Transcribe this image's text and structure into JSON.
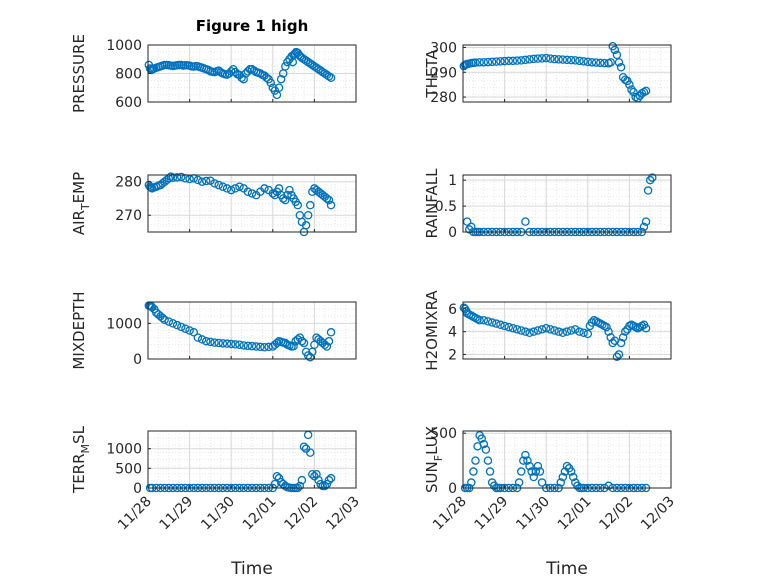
{
  "figure": {
    "title": "Figure 1 high",
    "background": "#ffffff",
    "marker_color": "#0072BD",
    "grid_color": "#d9d9d9",
    "axis_color": "#262626"
  },
  "chart_data": [
    {
      "type": "scatter",
      "panel": "top-left",
      "title": "Figure 1 high",
      "xlabel": "",
      "ylabel": "PRESSURE",
      "ylim": [
        600,
        1000
      ],
      "yticks": [
        600,
        800,
        1000
      ],
      "ytick_labels": [
        "600",
        "800",
        "1000"
      ],
      "xlim": [
        0,
        5
      ],
      "xtick_labels": [
        "11/28",
        "11/29",
        "11/30",
        "12/01",
        "12/02",
        "12/03"
      ],
      "grid": true,
      "minor_grid": true,
      "x": [
        0.02,
        0.05,
        0.08,
        0.1,
        0.12,
        0.15,
        0.2,
        0.25,
        0.3,
        0.35,
        0.4,
        0.45,
        0.5,
        0.55,
        0.6,
        0.65,
        0.7,
        0.75,
        0.8,
        0.85,
        0.9,
        0.95,
        1.0,
        1.05,
        1.1,
        1.15,
        1.2,
        1.25,
        1.3,
        1.35,
        1.4,
        1.45,
        1.5,
        1.55,
        1.6,
        1.65,
        1.7,
        1.75,
        1.8,
        1.85,
        1.9,
        1.95,
        2.0,
        2.05,
        2.1,
        2.15,
        2.2,
        2.25,
        2.3,
        2.35,
        2.4,
        2.45,
        2.5,
        2.55,
        2.6,
        2.65,
        2.7,
        2.75,
        2.8,
        2.85,
        2.9,
        2.95,
        3.0,
        3.05,
        3.1,
        3.15,
        3.2,
        3.25,
        3.3,
        3.35,
        3.4,
        3.45,
        3.48,
        3.5,
        3.53,
        3.56,
        3.6,
        3.63,
        3.66,
        3.7,
        3.75,
        3.8,
        3.85,
        3.9,
        3.95,
        4.0,
        4.05,
        4.1,
        4.15,
        4.2,
        4.25,
        4.3,
        4.35,
        4.4
      ],
      "y": [
        860,
        835,
        825,
        830,
        830,
        835,
        840,
        845,
        850,
        855,
        860,
        860,
        858,
        855,
        853,
        855,
        858,
        860,
        860,
        855,
        858,
        857,
        855,
        850,
        848,
        852,
        850,
        845,
        840,
        835,
        830,
        825,
        815,
        812,
        810,
        815,
        820,
        808,
        800,
        795,
        792,
        800,
        815,
        830,
        810,
        795,
        790,
        770,
        760,
        800,
        815,
        830,
        830,
        820,
        810,
        805,
        800,
        790,
        785,
        770,
        760,
        735,
        700,
        680,
        650,
        700,
        760,
        800,
        850,
        880,
        900,
        920,
        880,
        930,
        940,
        950,
        945,
        930,
        920,
        910,
        900,
        890,
        880,
        870,
        860,
        850,
        840,
        830,
        820,
        810,
        800,
        790,
        780,
        770
      ],
      "points_note": "x in days after 11/28"
    },
    {
      "type": "scatter",
      "panel": "top-right",
      "xlabel": "",
      "ylabel": "THETA",
      "ylim": [
        278,
        301
      ],
      "yticks": [
        280,
        290,
        300
      ],
      "ytick_labels": [
        "280",
        "290",
        "300"
      ],
      "xlim": [
        0,
        5
      ],
      "grid": true,
      "minor_grid": true,
      "x": [
        0.02,
        0.05,
        0.08,
        0.1,
        0.15,
        0.2,
        0.25,
        0.3,
        0.4,
        0.5,
        0.6,
        0.7,
        0.8,
        0.9,
        1.0,
        1.1,
        1.2,
        1.3,
        1.4,
        1.5,
        1.6,
        1.7,
        1.8,
        1.9,
        2.0,
        2.1,
        2.2,
        2.3,
        2.4,
        2.5,
        2.6,
        2.7,
        2.8,
        2.9,
        3.0,
        3.1,
        3.2,
        3.3,
        3.4,
        3.5,
        3.55,
        3.6,
        3.65,
        3.7,
        3.75,
        3.8,
        3.85,
        3.9,
        3.95,
        4.0,
        4.05,
        4.1,
        4.15,
        4.2,
        4.25,
        4.3,
        4.35,
        4.4
      ],
      "y": [
        292.5,
        293.0,
        293.2,
        293.3,
        293.5,
        293.7,
        293.8,
        293.9,
        294.0,
        294.0,
        294.1,
        294.2,
        294.3,
        294.4,
        294.5,
        294.6,
        294.6,
        294.7,
        294.8,
        295.0,
        295.2,
        295.4,
        295.5,
        295.6,
        295.7,
        295.5,
        295.3,
        295.2,
        295.1,
        295.0,
        294.9,
        294.8,
        294.6,
        294.4,
        294.2,
        294.0,
        293.9,
        293.8,
        293.7,
        293.6,
        294.0,
        300.5,
        299.0,
        297.0,
        294.0,
        292.0,
        288.0,
        287.0,
        286.5,
        285.0,
        283.0,
        282.0,
        280.0,
        279.5,
        280.5,
        281.5,
        282.0,
        282.5
      ]
    },
    {
      "type": "scatter",
      "panel": "row2-left",
      "xlabel": "",
      "ylabel": "AIR_TEMP",
      "ylabel_display": {
        "main": "AIR",
        "sub": "T",
        "rest": "EMP"
      },
      "ylim": [
        265,
        282
      ],
      "yticks": [
        270,
        280
      ],
      "ytick_labels": [
        "270",
        "280"
      ],
      "xlim": [
        0,
        5
      ],
      "grid": true,
      "minor_grid": true,
      "x": [
        0.02,
        0.05,
        0.08,
        0.1,
        0.15,
        0.2,
        0.25,
        0.3,
        0.35,
        0.4,
        0.45,
        0.5,
        0.55,
        0.6,
        0.7,
        0.8,
        0.9,
        1.0,
        1.1,
        1.2,
        1.3,
        1.4,
        1.5,
        1.6,
        1.7,
        1.8,
        1.9,
        2.0,
        2.1,
        2.2,
        2.3,
        2.4,
        2.5,
        2.6,
        2.7,
        2.8,
        2.9,
        3.0,
        3.05,
        3.1,
        3.15,
        3.2,
        3.25,
        3.3,
        3.35,
        3.4,
        3.45,
        3.5,
        3.55,
        3.6,
        3.65,
        3.7,
        3.75,
        3.8,
        3.85,
        3.9,
        3.95,
        4.0,
        4.05,
        4.1,
        4.15,
        4.2,
        4.25,
        4.3,
        4.35,
        4.4
      ],
      "y": [
        279,
        278.5,
        278.2,
        278.0,
        278.3,
        278.5,
        278.8,
        279.0,
        279.5,
        280.0,
        280.5,
        281.0,
        281.5,
        281.2,
        281.3,
        281.4,
        281.0,
        280.8,
        281.0,
        280.5,
        280.0,
        280.2,
        280.3,
        279.5,
        279.0,
        278.5,
        278.0,
        277.5,
        278.0,
        278.5,
        278.0,
        277.0,
        276.5,
        276.0,
        277.0,
        278.0,
        277.5,
        276.5,
        276.0,
        277.0,
        278.0,
        276.0,
        275.0,
        274.5,
        276.0,
        277.5,
        276.0,
        275.0,
        274.0,
        273.0,
        270.0,
        268.0,
        265.0,
        267.0,
        270.0,
        273.0,
        277.0,
        278.0,
        277.5,
        277.0,
        276.5,
        276.0,
        275.5,
        275.0,
        274.5,
        273.0
      ]
    },
    {
      "type": "scatter",
      "panel": "row2-right",
      "xlabel": "",
      "ylabel": "RAINFALL",
      "ylim": [
        0,
        1.1
      ],
      "yticks": [
        0,
        0.5,
        1
      ],
      "ytick_labels": [
        "0",
        "0.5",
        "1"
      ],
      "xlim": [
        0,
        5
      ],
      "grid": true,
      "minor_grid": true,
      "x": [
        0.1,
        0.15,
        0.2,
        0.25,
        0.3,
        0.35,
        0.4,
        0.5,
        0.6,
        0.7,
        0.8,
        0.9,
        1.0,
        1.1,
        1.2,
        1.3,
        1.4,
        1.5,
        1.6,
        1.7,
        1.8,
        1.9,
        2.0,
        2.1,
        2.2,
        2.3,
        2.4,
        2.5,
        2.6,
        2.7,
        2.8,
        2.9,
        3.0,
        3.1,
        3.2,
        3.3,
        3.4,
        3.5,
        3.6,
        3.7,
        3.8,
        3.9,
        4.0,
        4.1,
        4.2,
        4.3,
        4.35,
        4.4,
        4.45,
        4.5,
        4.55
      ],
      "y": [
        0.2,
        0.05,
        0.1,
        0.0,
        0.0,
        0.0,
        0.0,
        0.0,
        0.0,
        0.0,
        0.0,
        0.0,
        0.0,
        0.0,
        0.0,
        0.0,
        0.0,
        0.2,
        0.0,
        0.0,
        0.0,
        0.0,
        0.0,
        0.0,
        0.0,
        0.0,
        0.0,
        0.0,
        0.0,
        0.0,
        0.0,
        0.0,
        0.0,
        0.0,
        0.0,
        0.0,
        0.0,
        0.0,
        0.0,
        0.0,
        0.0,
        0.0,
        0.0,
        0.0,
        0.0,
        0.0,
        0.1,
        0.2,
        0.8,
        1.0,
        1.05
      ]
    },
    {
      "type": "scatter",
      "panel": "row3-left",
      "xlabel": "",
      "ylabel": "MIXDEPTH",
      "ylim": [
        0,
        1600
      ],
      "yticks": [
        0,
        1000
      ],
      "ytick_labels": [
        "0",
        "1000"
      ],
      "xlim": [
        0,
        5
      ],
      "grid": true,
      "minor_grid": true,
      "x": [
        0.02,
        0.05,
        0.08,
        0.1,
        0.15,
        0.2,
        0.25,
        0.3,
        0.35,
        0.4,
        0.5,
        0.6,
        0.7,
        0.8,
        0.9,
        1.0,
        1.1,
        1.2,
        1.3,
        1.4,
        1.5,
        1.6,
        1.7,
        1.8,
        1.9,
        2.0,
        2.1,
        2.2,
        2.3,
        2.4,
        2.5,
        2.6,
        2.7,
        2.8,
        2.9,
        3.0,
        3.05,
        3.1,
        3.15,
        3.2,
        3.25,
        3.3,
        3.35,
        3.4,
        3.45,
        3.5,
        3.55,
        3.6,
        3.65,
        3.7,
        3.75,
        3.8,
        3.85,
        3.9,
        3.95,
        4.0,
        4.05,
        4.1,
        4.15,
        4.2,
        4.25,
        4.3,
        4.35,
        4.4
      ],
      "y": [
        1500,
        1500,
        1480,
        1450,
        1400,
        1300,
        1250,
        1200,
        1150,
        1100,
        1050,
        1000,
        950,
        900,
        850,
        800,
        750,
        600,
        550,
        500,
        480,
        460,
        450,
        440,
        430,
        420,
        410,
        400,
        380,
        370,
        360,
        350,
        340,
        330,
        340,
        350,
        400,
        450,
        500,
        480,
        460,
        450,
        400,
        380,
        350,
        360,
        500,
        550,
        600,
        500,
        450,
        200,
        100,
        50,
        200,
        400,
        600,
        550,
        500,
        450,
        400,
        350,
        500,
        750
      ]
    },
    {
      "type": "scatter",
      "panel": "row3-right",
      "xlabel": "",
      "ylabel": "H2OMIXRA",
      "ylim": [
        1.6,
        6.6
      ],
      "yticks": [
        2,
        4,
        6
      ],
      "ytick_labels": [
        "2",
        "4",
        "6"
      ],
      "xlim": [
        0,
        5
      ],
      "grid": true,
      "minor_grid": true,
      "x": [
        0.02,
        0.05,
        0.08,
        0.1,
        0.15,
        0.2,
        0.25,
        0.3,
        0.35,
        0.4,
        0.5,
        0.6,
        0.7,
        0.8,
        0.9,
        1.0,
        1.1,
        1.2,
        1.3,
        1.4,
        1.5,
        1.6,
        1.7,
        1.8,
        1.9,
        2.0,
        2.1,
        2.2,
        2.3,
        2.4,
        2.5,
        2.6,
        2.7,
        2.8,
        2.9,
        3.0,
        3.05,
        3.1,
        3.15,
        3.2,
        3.25,
        3.3,
        3.35,
        3.4,
        3.45,
        3.5,
        3.55,
        3.6,
        3.65,
        3.7,
        3.75,
        3.8,
        3.85,
        3.9,
        3.95,
        4.0,
        4.05,
        4.1,
        4.15,
        4.2,
        4.25,
        4.3,
        4.35,
        4.4
      ],
      "y": [
        6.1,
        6.0,
        5.8,
        5.6,
        5.5,
        5.4,
        5.3,
        5.2,
        5.1,
        5.0,
        5.0,
        4.9,
        4.8,
        4.7,
        4.6,
        4.5,
        4.4,
        4.3,
        4.2,
        4.1,
        4.0,
        3.9,
        4.0,
        4.1,
        4.2,
        4.3,
        4.2,
        4.1,
        4.0,
        3.9,
        4.0,
        4.1,
        4.2,
        4.0,
        3.9,
        3.8,
        4.5,
        4.8,
        5.0,
        4.9,
        4.8,
        4.7,
        4.6,
        4.5,
        4.4,
        4.0,
        3.5,
        3.0,
        3.2,
        1.8,
        2.0,
        3.0,
        3.5,
        4.0,
        4.2,
        4.5,
        4.6,
        4.5,
        4.4,
        4.3,
        4.4,
        4.5,
        4.6,
        4.3
      ]
    },
    {
      "type": "scatter",
      "panel": "bottom-left",
      "xlabel": "Time",
      "ylabel": "TERR_MSL",
      "ylabel_display": {
        "main": "TERR",
        "sub": "M",
        "rest": "SL"
      },
      "ylim": [
        0,
        1450
      ],
      "yticks": [
        0,
        500,
        1000
      ],
      "ytick_labels": [
        "0",
        "500",
        "1000"
      ],
      "xlim": [
        0,
        5
      ],
      "xticks": [
        0,
        1,
        2,
        3,
        4,
        5
      ],
      "xtick_labels": [
        "11/28",
        "11/29",
        "11/30",
        "12/01",
        "12/02",
        "12/03"
      ],
      "grid": true,
      "minor_grid": true,
      "x": [
        0.05,
        0.1,
        0.2,
        0.3,
        0.4,
        0.5,
        0.6,
        0.7,
        0.8,
        0.9,
        1.0,
        1.1,
        1.2,
        1.3,
        1.4,
        1.5,
        1.6,
        1.7,
        1.8,
        1.9,
        2.0,
        2.1,
        2.2,
        2.3,
        2.4,
        2.5,
        2.6,
        2.7,
        2.8,
        2.9,
        3.0,
        3.05,
        3.1,
        3.15,
        3.2,
        3.25,
        3.3,
        3.35,
        3.4,
        3.45,
        3.5,
        3.55,
        3.6,
        3.65,
        3.7,
        3.75,
        3.8,
        3.85,
        3.9,
        3.95,
        4.0,
        4.05,
        4.1,
        4.15,
        4.2,
        4.25,
        4.3,
        4.35,
        4.4
      ],
      "y": [
        0,
        0,
        0,
        0,
        0,
        0,
        0,
        0,
        0,
        0,
        0,
        0,
        0,
        0,
        0,
        0,
        0,
        0,
        0,
        0,
        0,
        0,
        0,
        0,
        0,
        0,
        0,
        0,
        0,
        0,
        0,
        100,
        300,
        250,
        150,
        100,
        50,
        20,
        10,
        0,
        0,
        0,
        0,
        50,
        200,
        1050,
        1000,
        1350,
        900,
        350,
        300,
        350,
        200,
        100,
        50,
        50,
        100,
        200,
        250
      ]
    },
    {
      "type": "scatter",
      "panel": "bottom-right",
      "xlabel": "Time",
      "ylabel": "SUN_FLUX",
      "ylabel_display": {
        "main": "SUN",
        "sub": "F",
        "rest": "LUX"
      },
      "ylim": [
        0,
        520
      ],
      "yticks": [
        0,
        500
      ],
      "ytick_labels": [
        "0",
        "500"
      ],
      "xlim": [
        0,
        5
      ],
      "xticks": [
        0,
        1,
        2,
        3,
        4,
        5
      ],
      "xtick_labels": [
        "11/28",
        "11/29",
        "11/30",
        "12/01",
        "12/02",
        "12/03"
      ],
      "grid": true,
      "minor_grid": true,
      "x": [
        0.05,
        0.1,
        0.15,
        0.2,
        0.25,
        0.3,
        0.35,
        0.4,
        0.45,
        0.5,
        0.55,
        0.6,
        0.65,
        0.7,
        0.75,
        0.8,
        0.85,
        0.9,
        1.0,
        1.1,
        1.2,
        1.3,
        1.35,
        1.4,
        1.45,
        1.5,
        1.55,
        1.6,
        1.65,
        1.7,
        1.75,
        1.8,
        1.85,
        1.9,
        2.0,
        2.1,
        2.2,
        2.3,
        2.35,
        2.4,
        2.45,
        2.5,
        2.55,
        2.6,
        2.65,
        2.7,
        2.75,
        2.8,
        2.85,
        2.9,
        3.0,
        3.1,
        3.2,
        3.3,
        3.4,
        3.5,
        3.6,
        3.7,
        3.8,
        3.9,
        4.0,
        4.1,
        4.2,
        4.3,
        4.4
      ],
      "y": [
        0,
        0,
        0,
        50,
        150,
        250,
        380,
        480,
        450,
        400,
        350,
        250,
        150,
        50,
        20,
        0,
        0,
        0,
        0,
        0,
        0,
        0,
        50,
        150,
        250,
        300,
        250,
        200,
        150,
        100,
        150,
        200,
        150,
        50,
        0,
        0,
        0,
        0,
        50,
        100,
        150,
        200,
        180,
        150,
        100,
        50,
        20,
        0,
        0,
        0,
        0,
        0,
        0,
        0,
        0,
        20,
        0,
        0,
        0,
        0,
        0,
        0,
        0,
        0,
        0
      ]
    }
  ]
}
